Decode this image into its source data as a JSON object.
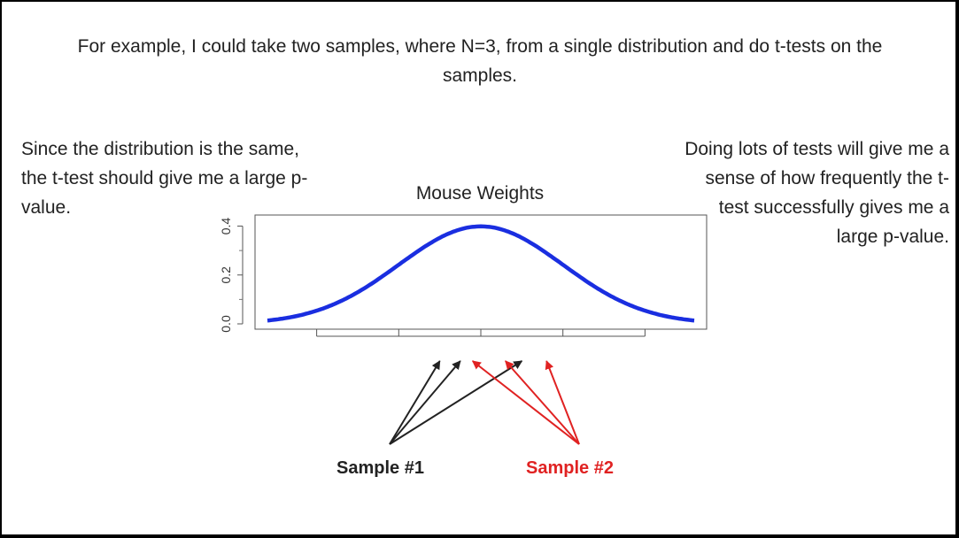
{
  "slide": {
    "intro_text": "For example, I could take two samples, where N=3, from a single distribution and do t-tests on the samples.",
    "left_note": "Since the distribution is the same, the t-test should give me a large p-value.",
    "right_note": "Doing lots of tests will give me a sense of how frequently the t-test successfully gives me a large p-value.",
    "sample1_label": "Sample #1",
    "sample2_label": "Sample #2",
    "colors": {
      "curve": "#1a2ee0",
      "sample1": "#222222",
      "sample2": "#e02222"
    }
  },
  "chart_data": {
    "type": "line",
    "title": "Mouse Weights",
    "xlabel": "",
    "ylabel": "",
    "xlim": [
      -2.6,
      2.6
    ],
    "ylim": [
      0,
      0.42
    ],
    "y_ticks": [
      "0.0",
      "0.2",
      "0.4"
    ],
    "x_tick_labels": [],
    "series": [
      {
        "function": "standard normal density",
        "mean": 0,
        "sd": 1
      }
    ],
    "sample1_points": [
      -0.5,
      -0.25,
      0.5
    ],
    "sample2_points": [
      -0.1,
      0.3,
      0.8
    ],
    "grid": false
  }
}
